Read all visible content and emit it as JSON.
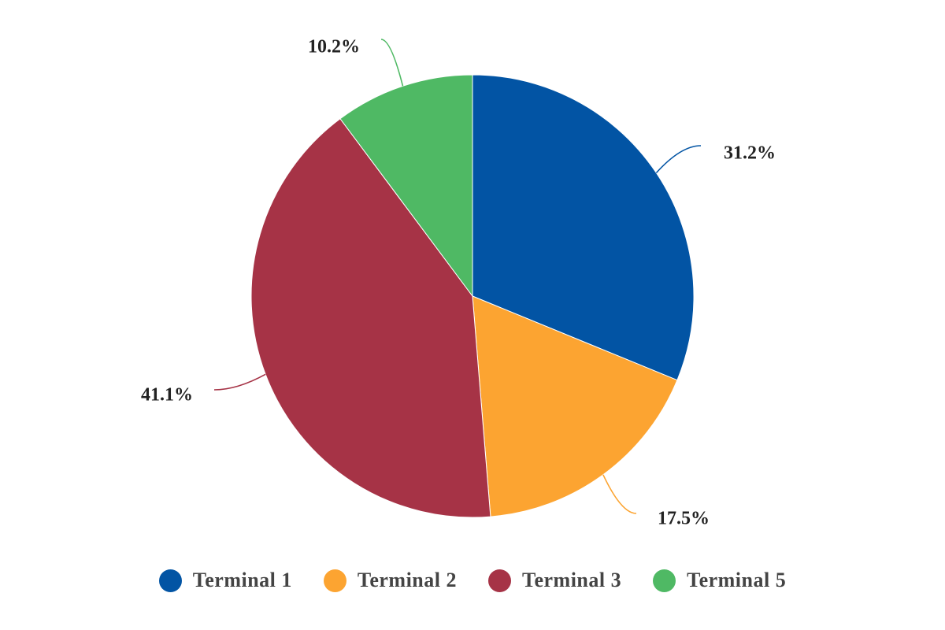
{
  "chart_data": {
    "type": "pie",
    "title": "",
    "slices": [
      {
        "name": "Terminal 1",
        "value": 31.2,
        "label": "31.2%",
        "color": "#0254a4"
      },
      {
        "name": "Terminal 2",
        "value": 17.5,
        "label": "17.5%",
        "color": "#fca431"
      },
      {
        "name": "Terminal 3",
        "value": 41.1,
        "label": "41.1%",
        "color": "#a63346"
      },
      {
        "name": "Terminal 5",
        "value": 10.2,
        "label": "10.2%",
        "color": "#4fb964"
      }
    ],
    "start_angle": "12 o'clock",
    "direction": "clockwise",
    "legend_placement": "bottom"
  }
}
